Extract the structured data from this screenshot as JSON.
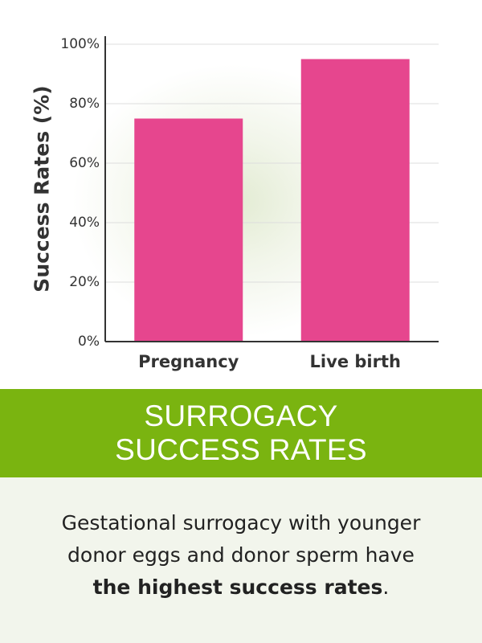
{
  "chart_data": {
    "type": "bar",
    "categories": [
      "Pregnancy",
      "Live birth"
    ],
    "values": [
      75,
      95
    ],
    "ylabel": "Success Rates (%)",
    "xlabel": "",
    "ylim": [
      0,
      100
    ],
    "yticks": [
      "0%",
      "20%",
      "40%",
      "60%",
      "80%",
      "100%"
    ],
    "ytick_values": [
      0,
      20,
      40,
      60,
      80,
      100
    ],
    "grid": true,
    "bar_color": "#e6468e"
  },
  "banner": {
    "line1": "SURROGACY",
    "line2": "SUCCESS RATES",
    "color": "#7ab410"
  },
  "footer": {
    "line1": "Gestational surrogacy with younger",
    "line2": "donor eggs and donor sperm have",
    "line3_bold": "the highest success rates",
    "line3_end": "."
  }
}
